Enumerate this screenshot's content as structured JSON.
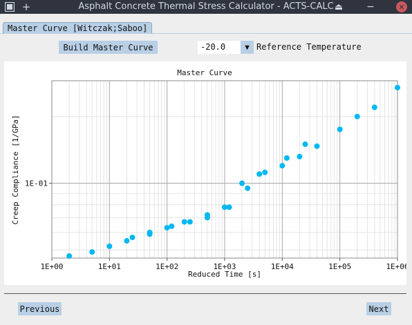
{
  "window": {
    "title": "Asphalt Concrete Thermal Stress Calculator - ACTS-CALC",
    "menu_icon": "app-menu-icon",
    "add_icon": "plus-icon",
    "controls": [
      "eject-icon",
      "minimize-icon",
      "close-icon"
    ],
    "add_glyph": "+",
    "eject_glyph": "⏏",
    "minimize_glyph": "−",
    "close_glyph": "✕"
  },
  "tabs": [
    {
      "label": "Master Curve [Witczak;Saboo]",
      "selected": true
    }
  ],
  "controls": {
    "build_button": "Build Master Curve",
    "reference_temperature": {
      "value": "-20.0",
      "label": "Reference Temperature",
      "dropdown_glyph": "▼"
    }
  },
  "navigation": {
    "previous": "Previous",
    "next": "Next"
  },
  "colors": {
    "accent": "#b8cfe5",
    "marker": "#00b8f0",
    "titlebar": "#2f343f",
    "close": "#cc575d"
  },
  "chart_data": {
    "type": "scatter",
    "title": "Master Curve",
    "xlabel": "Reduced Time [s]",
    "ylabel": "Creep Compliance [1/GPa]",
    "x_scale": "log",
    "y_scale": "log",
    "xlim": [
      1,
      1000000
    ],
    "ylim": [
      0.046,
      0.29
    ],
    "x_ticks": [
      {
        "value": 1,
        "label": "1E+00"
      },
      {
        "value": 10,
        "label": "1E+01"
      },
      {
        "value": 100,
        "label": "1E+02"
      },
      {
        "value": 1000,
        "label": "1E+03"
      },
      {
        "value": 10000,
        "label": "1E+04"
      },
      {
        "value": 100000,
        "label": "1E+05"
      },
      {
        "value": 1000000,
        "label": "1E+06"
      }
    ],
    "y_ticks": [
      {
        "value": 0.1,
        "label": "1E-01"
      }
    ],
    "grid": true,
    "legend": "none",
    "points": [
      {
        "x": 2,
        "y": 0.047
      },
      {
        "x": 5,
        "y": 0.049
      },
      {
        "x": 10,
        "y": 0.052
      },
      {
        "x": 20,
        "y": 0.055
      },
      {
        "x": 25,
        "y": 0.057
      },
      {
        "x": 50,
        "y": 0.059
      },
      {
        "x": 50,
        "y": 0.06
      },
      {
        "x": 100,
        "y": 0.063
      },
      {
        "x": 120,
        "y": 0.064
      },
      {
        "x": 200,
        "y": 0.067
      },
      {
        "x": 250,
        "y": 0.067
      },
      {
        "x": 500,
        "y": 0.07
      },
      {
        "x": 500,
        "y": 0.072
      },
      {
        "x": 1000,
        "y": 0.078
      },
      {
        "x": 1200,
        "y": 0.078
      },
      {
        "x": 2000,
        "y": 0.1
      },
      {
        "x": 2500,
        "y": 0.095
      },
      {
        "x": 4000,
        "y": 0.11
      },
      {
        "x": 5000,
        "y": 0.112
      },
      {
        "x": 10000,
        "y": 0.12
      },
      {
        "x": 12000,
        "y": 0.13
      },
      {
        "x": 20000,
        "y": 0.132
      },
      {
        "x": 25000,
        "y": 0.15
      },
      {
        "x": 40000,
        "y": 0.147
      },
      {
        "x": 100000,
        "y": 0.175
      },
      {
        "x": 200000,
        "y": 0.2
      },
      {
        "x": 400000,
        "y": 0.22
      },
      {
        "x": 1000000,
        "y": 0.27
      }
    ]
  }
}
